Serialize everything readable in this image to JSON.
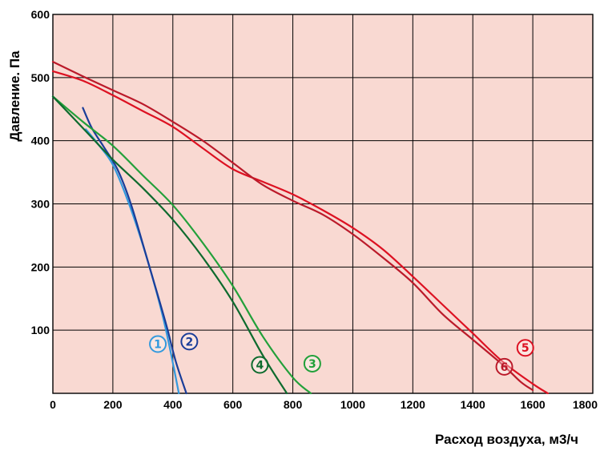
{
  "chart_data": {
    "type": "line",
    "title": "",
    "xlabel": "Расход воздуха, м3/ч",
    "ylabel": "Давление. Па",
    "xlim": [
      0,
      1800
    ],
    "ylim": [
      0,
      600
    ],
    "x_ticks": [
      "0",
      "200",
      "400",
      "600",
      "800",
      "1000",
      "1200",
      "1400",
      "1600",
      "1800"
    ],
    "y_ticks": [
      "100",
      "200",
      "300",
      "400",
      "500",
      "600"
    ],
    "grid": true,
    "background_color": "#f9d9d2",
    "series": [
      {
        "name": "1",
        "color": "#3399dd",
        "points": [
          [
            110,
            418
          ],
          [
            150,
            395
          ],
          [
            200,
            362
          ],
          [
            250,
            305
          ],
          [
            300,
            235
          ],
          [
            340,
            170
          ],
          [
            370,
            115
          ],
          [
            395,
            60
          ],
          [
            420,
            0
          ]
        ]
      },
      {
        "name": "2",
        "color": "#1a3d99",
        "points": [
          [
            100,
            452
          ],
          [
            130,
            420
          ],
          [
            170,
            390
          ],
          [
            215,
            355
          ],
          [
            260,
            300
          ],
          [
            310,
            220
          ],
          [
            350,
            155
          ],
          [
            380,
            105
          ],
          [
            410,
            50
          ],
          [
            445,
            0
          ]
        ]
      },
      {
        "name": "3",
        "color": "#22a03a",
        "points": [
          [
            0,
            470
          ],
          [
            100,
            430
          ],
          [
            200,
            392
          ],
          [
            300,
            345
          ],
          [
            400,
            298
          ],
          [
            500,
            238
          ],
          [
            600,
            170
          ],
          [
            700,
            90
          ],
          [
            800,
            25
          ],
          [
            860,
            0
          ]
        ]
      },
      {
        "name": "4",
        "color": "#0e6b2e",
        "points": [
          [
            0,
            470
          ],
          [
            100,
            420
          ],
          [
            200,
            370
          ],
          [
            300,
            325
          ],
          [
            400,
            275
          ],
          [
            500,
            215
          ],
          [
            600,
            145
          ],
          [
            700,
            60
          ],
          [
            780,
            0
          ]
        ]
      },
      {
        "name": "5",
        "color": "#dd1122",
        "points": [
          [
            0,
            510
          ],
          [
            100,
            495
          ],
          [
            200,
            472
          ],
          [
            300,
            447
          ],
          [
            400,
            422
          ],
          [
            500,
            388
          ],
          [
            600,
            355
          ],
          [
            700,
            335
          ],
          [
            800,
            315
          ],
          [
            900,
            290
          ],
          [
            1000,
            262
          ],
          [
            1100,
            228
          ],
          [
            1200,
            185
          ],
          [
            1300,
            140
          ],
          [
            1400,
            95
          ],
          [
            1500,
            50
          ],
          [
            1600,
            15
          ],
          [
            1650,
            0
          ]
        ]
      },
      {
        "name": "6",
        "color": "#bb1a2a",
        "points": [
          [
            0,
            525
          ],
          [
            100,
            502
          ],
          [
            200,
            480
          ],
          [
            300,
            458
          ],
          [
            400,
            430
          ],
          [
            500,
            400
          ],
          [
            600,
            365
          ],
          [
            700,
            330
          ],
          [
            800,
            305
          ],
          [
            900,
            283
          ],
          [
            1000,
            252
          ],
          [
            1100,
            215
          ],
          [
            1200,
            175
          ],
          [
            1300,
            125
          ],
          [
            1400,
            85
          ],
          [
            1500,
            45
          ],
          [
            1560,
            18
          ],
          [
            1600,
            5
          ]
        ]
      }
    ]
  },
  "curve_labels": [
    {
      "text": "①",
      "series": "1",
      "color": "#3399dd",
      "x": 350,
      "y": 78
    },
    {
      "text": "②",
      "series": "2",
      "color": "#1a3d99",
      "x": 455,
      "y": 82
    },
    {
      "text": "③",
      "series": "3",
      "color": "#22a03a",
      "x": 865,
      "y": 47
    },
    {
      "text": "④",
      "series": "4",
      "color": "#0e6b2e",
      "x": 690,
      "y": 45
    },
    {
      "text": "⑤",
      "series": "5",
      "color": "#dd1122",
      "x": 1575,
      "y": 72
    },
    {
      "text": "⑥",
      "series": "6",
      "color": "#bb1a2a",
      "x": 1505,
      "y": 42
    }
  ]
}
